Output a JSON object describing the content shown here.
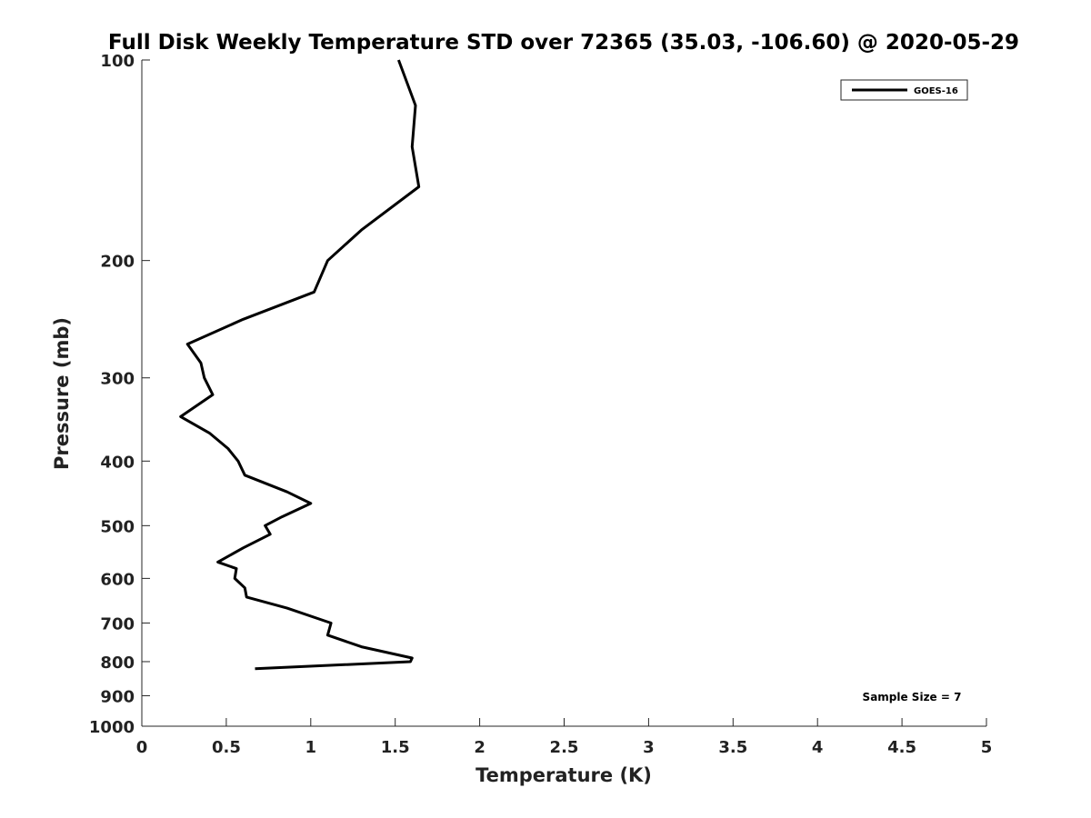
{
  "chart_data": {
    "type": "line",
    "title": "Full Disk Weekly Temperature STD over 72365 (35.03, -106.60) @ 2020-05-29",
    "xlabel": "Temperature (K)",
    "ylabel": "Pressure (mb)",
    "xlim": [
      0,
      5
    ],
    "ylim": [
      100,
      1000
    ],
    "y_scale": "log",
    "y_reversed": true,
    "grid": false,
    "x_ticks": [
      0,
      0.5,
      1,
      1.5,
      2,
      2.5,
      3,
      3.5,
      4,
      4.5,
      5
    ],
    "x_tick_labels": [
      "0",
      "0.5",
      "1",
      "1.5",
      "2",
      "2.5",
      "3",
      "3.5",
      "4",
      "4.5",
      "5"
    ],
    "y_ticks": [
      100,
      200,
      300,
      400,
      500,
      600,
      700,
      800,
      900,
      1000
    ],
    "y_tick_labels": [
      "100",
      "200",
      "300",
      "400",
      "500",
      "600",
      "700",
      "800",
      "900",
      "1000"
    ],
    "legend": {
      "placement": "top-right",
      "entries": [
        "GOES-16"
      ]
    },
    "annotation": "Sample Size = 7",
    "series": [
      {
        "name": "GOES-16",
        "color": "#000000",
        "points": [
          [
            1.52,
            100
          ],
          [
            1.62,
            117
          ],
          [
            1.6,
            135
          ],
          [
            1.64,
            155
          ],
          [
            1.3,
            180
          ],
          [
            1.1,
            200
          ],
          [
            1.02,
            223
          ],
          [
            0.6,
            245
          ],
          [
            0.27,
            267
          ],
          [
            0.35,
            285
          ],
          [
            0.37,
            300
          ],
          [
            0.42,
            318
          ],
          [
            0.23,
            343
          ],
          [
            0.4,
            363
          ],
          [
            0.51,
            383
          ],
          [
            0.57,
            400
          ],
          [
            0.61,
            420
          ],
          [
            0.86,
            445
          ],
          [
            1.0,
            463
          ],
          [
            0.83,
            485
          ],
          [
            0.73,
            500
          ],
          [
            0.76,
            515
          ],
          [
            0.6,
            540
          ],
          [
            0.45,
            567
          ],
          [
            0.56,
            580
          ],
          [
            0.55,
            600
          ],
          [
            0.61,
            620
          ],
          [
            0.62,
            640
          ],
          [
            0.86,
            665
          ],
          [
            1.12,
            700
          ],
          [
            1.1,
            730
          ],
          [
            1.3,
            760
          ],
          [
            1.6,
            790
          ],
          [
            1.59,
            800
          ],
          [
            0.67,
            820
          ]
        ]
      }
    ]
  }
}
